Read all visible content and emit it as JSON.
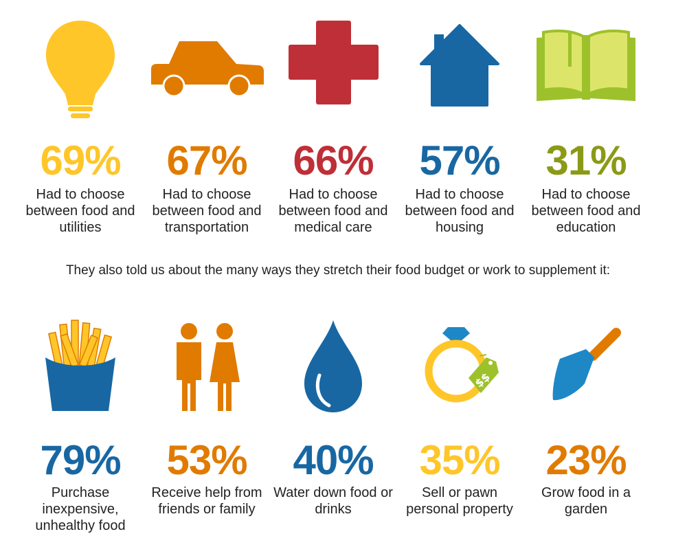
{
  "top_stats": [
    {
      "icon": "lightbulb-icon",
      "percent": "69%",
      "text": "Had to choose between food and utilities",
      "color": "#FFC629"
    },
    {
      "icon": "car-icon",
      "percent": "67%",
      "text": "Had to choose between food and transportation",
      "color": "#E07B00"
    },
    {
      "icon": "medical-cross-icon",
      "percent": "66%",
      "text": "Had to choose between food and medical care",
      "color": "#BE2F37"
    },
    {
      "icon": "house-icon",
      "percent": "57%",
      "text": "Had to choose between food and housing",
      "color": "#1867A3"
    },
    {
      "icon": "book-icon",
      "percent": "31%",
      "text": "Had to choose between food and education",
      "color": "#8B9A16"
    }
  ],
  "intro": "They also told us about the many ways they stretch their food budget or work to supplement it:",
  "bottom_stats": [
    {
      "icon": "fries-icon",
      "percent": "79%",
      "text": "Purchase inexpensive, unhealthy food",
      "color": "#1867A3"
    },
    {
      "icon": "people-icon",
      "percent": "53%",
      "text": "Receive help from friends or family",
      "color": "#E07B00"
    },
    {
      "icon": "water-drop-icon",
      "percent": "40%",
      "text": "Water down food or drinks",
      "color": "#1867A3"
    },
    {
      "icon": "ring-price-tag-icon",
      "percent": "35%",
      "text": "Sell or pawn personal property",
      "color": "#FFC629"
    },
    {
      "icon": "trowel-icon",
      "percent": "23%",
      "text": "Grow food in a garden",
      "color": "#E07B00"
    }
  ]
}
